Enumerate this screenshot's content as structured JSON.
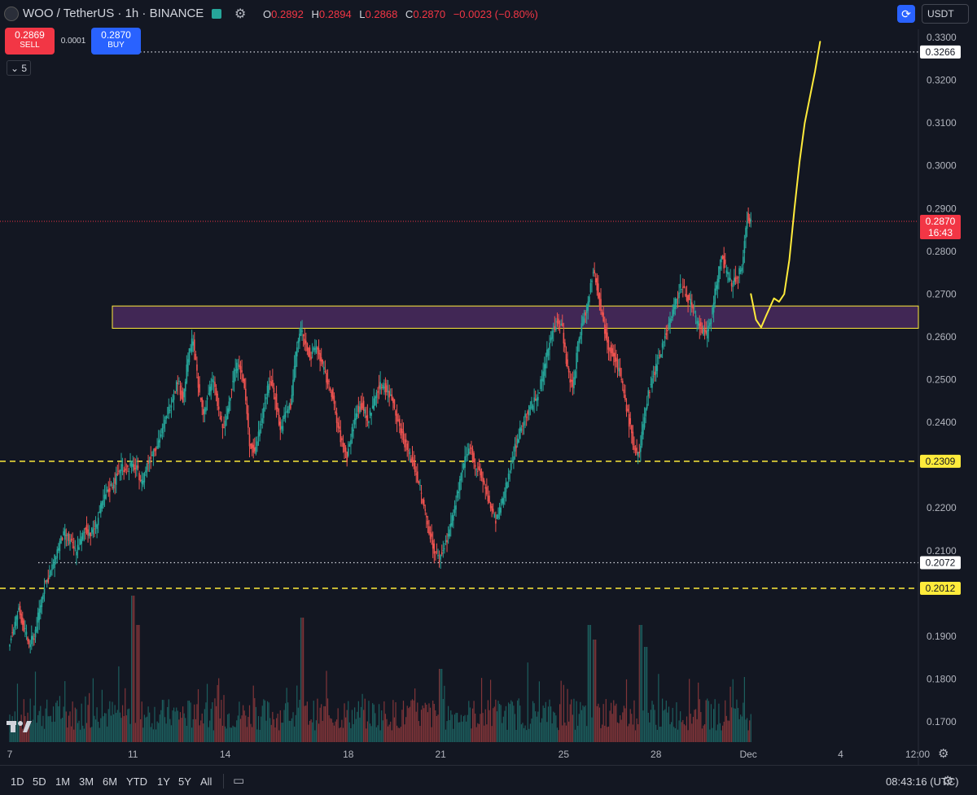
{
  "header": {
    "symbol_title": "WOO / TetherUS · 1h · BINANCE",
    "ohlc": [
      {
        "k": "O",
        "v": "0.2892"
      },
      {
        "k": "H",
        "v": "0.2894"
      },
      {
        "k": "L",
        "v": "0.2868"
      },
      {
        "k": "C",
        "v": "0.2870"
      },
      {
        "k": "",
        "v": "−0.0023 (−0.80%)"
      }
    ],
    "currency": "USDT"
  },
  "trade": {
    "sell_price": "0.2869",
    "sell_label": "SELL",
    "buy_price": "0.2870",
    "buy_label": "BUY",
    "spread": "0.0001",
    "collapse_label": "5"
  },
  "colors": {
    "bg": "#131722",
    "up": "#26a69a",
    "down": "#ef5350",
    "accent_yellow": "#ffeb3b",
    "zone_fill": "#4a2a5e",
    "price_red": "#f23645"
  },
  "chart_data": {
    "type": "candlestick",
    "timeframe": "1h",
    "y_tick_labels": [
      "0.3300",
      "0.3200",
      "0.3100",
      "0.3000",
      "0.2900",
      "0.2800",
      "0.2700",
      "0.2600",
      "0.2500",
      "0.2400",
      "0.2200",
      "0.2100",
      "0.1900",
      "0.1800",
      "0.1700"
    ],
    "x_tick_labels": [
      {
        "label": "7",
        "t": 0
      },
      {
        "label": "11",
        "t": 96
      },
      {
        "label": "14",
        "t": 168
      },
      {
        "label": "18",
        "t": 264
      },
      {
        "label": "21",
        "t": 336
      },
      {
        "label": "25",
        "t": 432
      },
      {
        "label": "28",
        "t": 504
      },
      {
        "label": "Dec",
        "t": 576
      },
      {
        "label": "4",
        "t": 648
      },
      {
        "label": "12:00",
        "t": 708
      }
    ],
    "price_path": [
      [
        0,
        0.188
      ],
      [
        4,
        0.192
      ],
      [
        8,
        0.196
      ],
      [
        12,
        0.192
      ],
      [
        16,
        0.188
      ],
      [
        20,
        0.19
      ],
      [
        24,
        0.196
      ],
      [
        28,
        0.202
      ],
      [
        32,
        0.204
      ],
      [
        36,
        0.208
      ],
      [
        40,
        0.212
      ],
      [
        44,
        0.214
      ],
      [
        48,
        0.212
      ],
      [
        52,
        0.21
      ],
      [
        56,
        0.212
      ],
      [
        60,
        0.215
      ],
      [
        64,
        0.214
      ],
      [
        68,
        0.216
      ],
      [
        72,
        0.22
      ],
      [
        76,
        0.223
      ],
      [
        80,
        0.225
      ],
      [
        84,
        0.227
      ],
      [
        88,
        0.23
      ],
      [
        92,
        0.229
      ],
      [
        96,
        0.23
      ],
      [
        100,
        0.229
      ],
      [
        104,
        0.226
      ],
      [
        108,
        0.23
      ],
      [
        112,
        0.233
      ],
      [
        116,
        0.235
      ],
      [
        120,
        0.238
      ],
      [
        124,
        0.242
      ],
      [
        128,
        0.246
      ],
      [
        132,
        0.25
      ],
      [
        136,
        0.245
      ],
      [
        140,
        0.255
      ],
      [
        144,
        0.26
      ],
      [
        148,
        0.248
      ],
      [
        152,
        0.242
      ],
      [
        156,
        0.247
      ],
      [
        160,
        0.25
      ],
      [
        164,
        0.242
      ],
      [
        168,
        0.238
      ],
      [
        172,
        0.245
      ],
      [
        176,
        0.252
      ],
      [
        180,
        0.254
      ],
      [
        184,
        0.248
      ],
      [
        188,
        0.235
      ],
      [
        192,
        0.233
      ],
      [
        196,
        0.239
      ],
      [
        200,
        0.245
      ],
      [
        204,
        0.25
      ],
      [
        208,
        0.246
      ],
      [
        212,
        0.238
      ],
      [
        216,
        0.242
      ],
      [
        220,
        0.244
      ],
      [
        224,
        0.256
      ],
      [
        228,
        0.262
      ],
      [
        232,
        0.258
      ],
      [
        236,
        0.255
      ],
      [
        240,
        0.258
      ],
      [
        244,
        0.254
      ],
      [
        248,
        0.25
      ],
      [
        252,
        0.247
      ],
      [
        256,
        0.24
      ],
      [
        260,
        0.235
      ],
      [
        264,
        0.232
      ],
      [
        268,
        0.238
      ],
      [
        272,
        0.243
      ],
      [
        276,
        0.244
      ],
      [
        280,
        0.24
      ],
      [
        284,
        0.244
      ],
      [
        288,
        0.248
      ],
      [
        292,
        0.249
      ],
      [
        296,
        0.247
      ],
      [
        300,
        0.245
      ],
      [
        304,
        0.24
      ],
      [
        308,
        0.236
      ],
      [
        312,
        0.233
      ],
      [
        316,
        0.23
      ],
      [
        320,
        0.226
      ],
      [
        324,
        0.22
      ],
      [
        328,
        0.215
      ],
      [
        332,
        0.21
      ],
      [
        336,
        0.208
      ],
      [
        340,
        0.211
      ],
      [
        344,
        0.215
      ],
      [
        348,
        0.22
      ],
      [
        352,
        0.226
      ],
      [
        356,
        0.231
      ],
      [
        360,
        0.234
      ],
      [
        364,
        0.23
      ],
      [
        368,
        0.228
      ],
      [
        372,
        0.224
      ],
      [
        376,
        0.22
      ],
      [
        380,
        0.217
      ],
      [
        384,
        0.22
      ],
      [
        388,
        0.225
      ],
      [
        392,
        0.231
      ],
      [
        396,
        0.235
      ],
      [
        400,
        0.239
      ],
      [
        404,
        0.242
      ],
      [
        408,
        0.244
      ],
      [
        412,
        0.246
      ],
      [
        416,
        0.25
      ],
      [
        420,
        0.256
      ],
      [
        424,
        0.261
      ],
      [
        428,
        0.264
      ],
      [
        432,
        0.262
      ],
      [
        436,
        0.252
      ],
      [
        440,
        0.248
      ],
      [
        444,
        0.258
      ],
      [
        448,
        0.264
      ],
      [
        452,
        0.268
      ],
      [
        456,
        0.276
      ],
      [
        460,
        0.27
      ],
      [
        464,
        0.263
      ],
      [
        468,
        0.258
      ],
      [
        472,
        0.256
      ],
      [
        476,
        0.252
      ],
      [
        480,
        0.247
      ],
      [
        484,
        0.24
      ],
      [
        488,
        0.234
      ],
      [
        492,
        0.232
      ],
      [
        496,
        0.242
      ],
      [
        500,
        0.248
      ],
      [
        504,
        0.252
      ],
      [
        508,
        0.256
      ],
      [
        512,
        0.26
      ],
      [
        516,
        0.264
      ],
      [
        520,
        0.268
      ],
      [
        524,
        0.272
      ],
      [
        528,
        0.27
      ],
      [
        532,
        0.268
      ],
      [
        536,
        0.264
      ],
      [
        540,
        0.262
      ],
      [
        544,
        0.26
      ],
      [
        548,
        0.265
      ],
      [
        552,
        0.272
      ],
      [
        556,
        0.279
      ],
      [
        560,
        0.275
      ],
      [
        564,
        0.272
      ],
      [
        568,
        0.274
      ],
      [
        572,
        0.276
      ],
      [
        574,
        0.282
      ],
      [
        576,
        0.288
      ],
      [
        578,
        0.287
      ]
    ],
    "volume_peaks": [
      {
        "t": 96,
        "rel": 1.0
      },
      {
        "t": 100,
        "rel": 0.8
      },
      {
        "t": 228,
        "rel": 0.85
      },
      {
        "t": 336,
        "rel": 0.5
      },
      {
        "t": 452,
        "rel": 0.8
      },
      {
        "t": 456,
        "rel": 0.7
      },
      {
        "t": 492,
        "rel": 0.8
      },
      {
        "t": 496,
        "rel": 0.65
      }
    ],
    "resistance_zone": [
      0.262,
      0.2672
    ],
    "horizontal_levels": [
      {
        "price": 0.3266,
        "label": "0.3266",
        "style": "dotted-white"
      },
      {
        "price": 0.2309,
        "label": "0.2309",
        "style": "dashed-yellow"
      },
      {
        "price": 0.2072,
        "label": "0.2072",
        "style": "dotted-white"
      },
      {
        "price": 0.2012,
        "label": "0.2012",
        "style": "dashed-yellow"
      }
    ],
    "last_price": {
      "price": 0.287,
      "label": "0.2870",
      "countdown": "16:43"
    },
    "projection_path": [
      [
        578,
        0.27
      ],
      [
        582,
        0.264
      ],
      [
        586,
        0.2622
      ],
      [
        590,
        0.265
      ],
      [
        596,
        0.269
      ],
      [
        600,
        0.2682
      ],
      [
        604,
        0.27
      ],
      [
        608,
        0.278
      ],
      [
        612,
        0.29
      ],
      [
        616,
        0.301
      ],
      [
        620,
        0.31
      ],
      [
        624,
        0.316
      ],
      [
        628,
        0.322
      ],
      [
        632,
        0.329
      ]
    ]
  },
  "bottom": {
    "ranges": [
      "1D",
      "5D",
      "1M",
      "3M",
      "6M",
      "YTD",
      "1Y",
      "5Y",
      "All"
    ],
    "clock": "08:43:16 (UTC)"
  }
}
